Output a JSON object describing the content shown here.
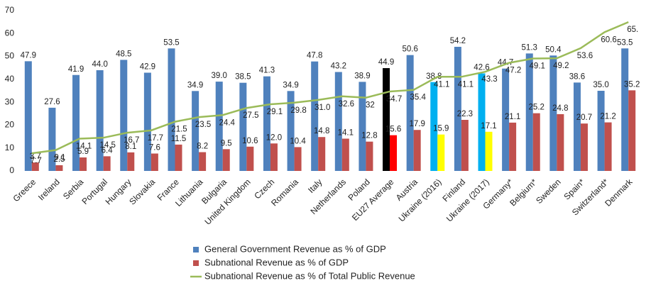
{
  "chart_data": {
    "type": "bar",
    "categories": [
      "Greece",
      "Ireland",
      "Serbia",
      "Portugal",
      "Hungary",
      "Slovakia",
      "France",
      "Lithuania",
      "Bulgaria",
      "United Kingdom",
      "Czech",
      "Romania",
      "Italy",
      "Netherlands",
      "Poland",
      "EU27 Average",
      "Austria",
      "Ukraine (2016)",
      "Finland",
      "Ukraine (2017)",
      "Germany*",
      "Belgium*",
      "Sweden",
      "Spain*",
      "Switzerland*",
      "Denmark"
    ],
    "series": [
      {
        "name": "General Government Revenue as % of GDP",
        "color": "#4f81bd",
        "kind": "bar",
        "values": [
          47.9,
          27.6,
          41.9,
          44.0,
          48.5,
          42.9,
          53.5,
          34.9,
          39.0,
          38.5,
          41.3,
          34.9,
          47.8,
          43.2,
          38.9,
          44.9,
          50.6,
          38.8,
          54.2,
          42.6,
          44.7,
          51.3,
          50.4,
          38.6,
          35.0,
          53.5
        ],
        "value_labels": [
          "47.9",
          "27.6",
          "41.9",
          "44.0",
          "48.5",
          "42.9",
          "53.5",
          "34.9",
          "39.0",
          "38.5",
          "41.3",
          "34.9",
          "47.8",
          "43.2",
          "38.9",
          "44.9",
          "50.6",
          "38.8",
          "54.2",
          "42.6",
          "44.7",
          "51.3",
          "50.4",
          "38.6",
          "35.0",
          "53.5"
        ],
        "point_colors": {
          "15": "#000000",
          "17": "#00b0f0",
          "19": "#00b0f0"
        }
      },
      {
        "name": "Subnational Revenue as % of GDP",
        "color": "#c0504d",
        "kind": "bar",
        "values": [
          3.7,
          2.5,
          5.9,
          6.4,
          8.1,
          7.6,
          11.5,
          8.2,
          9.5,
          10.6,
          12.0,
          10.4,
          14.8,
          14.1,
          12.8,
          15.6,
          17.9,
          15.9,
          22.3,
          17.1,
          21.1,
          25.2,
          24.8,
          20.7,
          21.2,
          35.2
        ],
        "value_labels": [
          "3.7",
          "2.5",
          "5.9",
          "6.4",
          "8.1",
          "7.6",
          "11.5",
          "8.2",
          "9.5",
          "10.6",
          "12.0",
          "10.4",
          "14.8",
          "14.1",
          "12.8",
          "15.6",
          "17.9",
          "15.9",
          "22.3",
          "17.1",
          "21.1",
          "25.2",
          "24.8",
          "20.7",
          "21.2",
          "35.2"
        ],
        "point_colors": {
          "15": "#ff0000",
          "17": "#ffff00",
          "19": "#ffff00"
        }
      },
      {
        "name": "Subnational Revenue as % of Total Public Revenue",
        "color": "#9bbb59",
        "kind": "line",
        "values": [
          7.7,
          9.1,
          14.1,
          14.5,
          16.7,
          17.7,
          21.5,
          23.5,
          24.4,
          27.5,
          29.1,
          29.8,
          31.0,
          32.6,
          32,
          34.7,
          35.4,
          41.1,
          41.1,
          43.3,
          47.2,
          49.1,
          49.2,
          53.6,
          60.6,
          65
        ],
        "value_labels": [
          "7.7",
          "9.1",
          "14.1",
          "14.5",
          "16.7",
          "17.7",
          "21.5",
          "23.5",
          "24.4",
          "27.5",
          "29.1",
          "29.8",
          "31.0",
          "32.6",
          "32",
          "34.7",
          "35.4",
          "41.1",
          "41.1",
          "43.3",
          "47.2",
          "49.1",
          "49.2",
          "53.6",
          "60.6",
          "65."
        ]
      }
    ],
    "ylim": [
      0,
      70
    ],
    "yticks": [
      0,
      10,
      20,
      30,
      40,
      50,
      60,
      70
    ],
    "grid": false,
    "legend": "bottom"
  }
}
